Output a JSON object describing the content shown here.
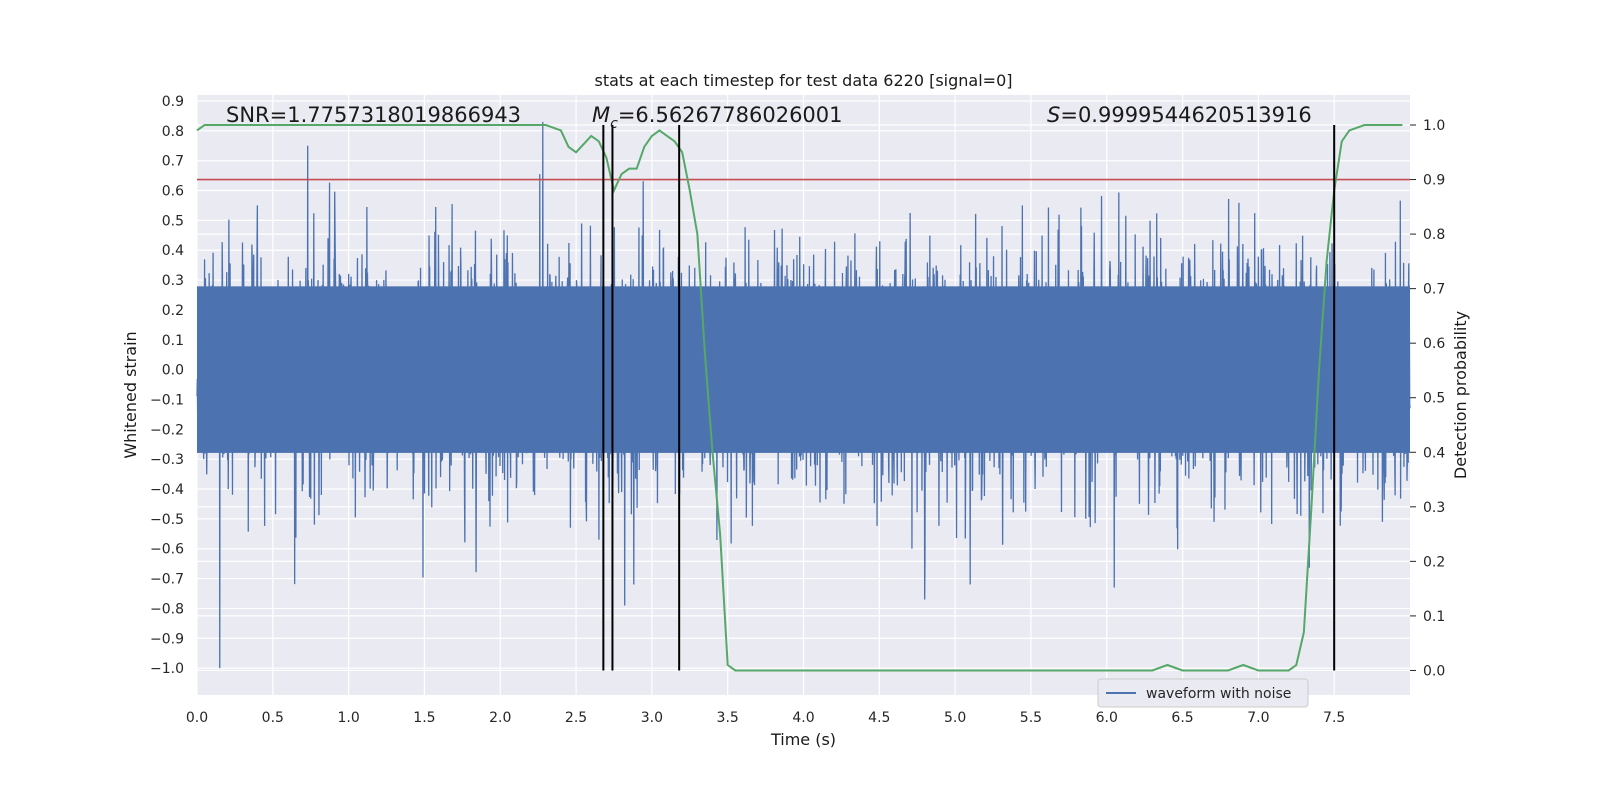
{
  "chart_data": {
    "type": "line",
    "title": "stats at each timestep for test data 6220 [signal=0]",
    "xlabel": "Time (s)",
    "ylabel": "Whitened strain",
    "y2label": "Detection probability",
    "xlim": [
      0.0,
      8.0
    ],
    "ylim": [
      -1.09,
      0.92
    ],
    "y2lim": [
      -0.045,
      1.055
    ],
    "x_ticks": [
      0.0,
      0.5,
      1.0,
      1.5,
      2.0,
      2.5,
      3.0,
      3.5,
      4.0,
      4.5,
      5.0,
      5.5,
      6.0,
      6.5,
      7.0,
      7.5
    ],
    "x_tick_labels": [
      "0.0",
      "0.5",
      "1.0",
      "1.5",
      "2.0",
      "2.5",
      "3.0",
      "3.5",
      "4.0",
      "4.5",
      "5.0",
      "5.5",
      "6.0",
      "6.5",
      "7.0",
      "7.5"
    ],
    "y_ticks": [
      0.9,
      0.8,
      0.7,
      0.6,
      0.5,
      0.4,
      0.3,
      0.2,
      0.1,
      0.0,
      -0.1,
      -0.2,
      -0.3,
      -0.4,
      -0.5,
      -0.6,
      -0.7,
      -0.8,
      -0.9,
      -1.0
    ],
    "y_tick_labels": [
      "0.9",
      "0.8",
      "0.7",
      "0.6",
      "0.5",
      "0.4",
      "0.3",
      "0.2",
      "0.1",
      "0.0",
      "−0.1",
      "−0.2",
      "−0.3",
      "−0.4",
      "−0.5",
      "−0.6",
      "−0.7",
      "−0.8",
      "−0.9",
      "−1.0"
    ],
    "y2_ticks": [
      1.0,
      0.9,
      0.8,
      0.7,
      0.6,
      0.5,
      0.4,
      0.3,
      0.2,
      0.1,
      0.0
    ],
    "y2_tick_labels": [
      "1.0",
      "0.9",
      "0.8",
      "0.7",
      "0.6",
      "0.5",
      "0.4",
      "0.3",
      "0.2",
      "0.1",
      "0.0"
    ],
    "grid": true,
    "legend_position": "bottom-right",
    "annotations": {
      "snr": "SNR=1.7757318019866943",
      "mc_symbol": "M",
      "mc_sub": "c",
      "mc_value": "=6.56267786026001",
      "s_symbol": "S",
      "s_value": "=0.9999544620513916"
    },
    "series": [
      {
        "name": "waveform with noise",
        "axis": "left",
        "color": "#4c72b0",
        "kind": "noise waveform",
        "envelope_typical": [
          -0.45,
          0.45
        ],
        "notable_spikes": [
          {
            "x": 0.15,
            "y": -1.0
          },
          {
            "x": 0.73,
            "y": 0.75
          },
          {
            "x": 2.28,
            "y": 0.83
          },
          {
            "x": 2.82,
            "y": -0.79
          },
          {
            "x": 4.8,
            "y": -0.77
          },
          {
            "x": 6.05,
            "y": -0.73
          }
        ]
      },
      {
        "axis": "right",
        "color": "#55a868",
        "x": [
          0.0,
          0.05,
          0.1,
          0.2,
          0.5,
          1.0,
          1.5,
          2.0,
          2.3,
          2.4,
          2.45,
          2.5,
          2.6,
          2.65,
          2.7,
          2.75,
          2.8,
          2.85,
          2.9,
          2.95,
          3.0,
          3.05,
          3.1,
          3.15,
          3.2,
          3.25,
          3.3,
          3.35,
          3.4,
          3.45,
          3.5,
          3.55,
          3.6,
          3.75,
          4.0,
          4.2,
          4.3,
          4.5,
          4.8,
          5.0,
          5.2,
          5.5,
          6.0,
          6.3,
          6.4,
          6.5,
          6.6,
          6.7,
          6.8,
          6.9,
          7.0,
          7.1,
          7.2,
          7.25,
          7.3,
          7.35,
          7.4,
          7.45,
          7.5,
          7.55,
          7.6,
          7.7,
          7.8,
          7.95
        ],
        "values": [
          0.99,
          1.0,
          1.0,
          1.0,
          1.0,
          1.0,
          1.0,
          1.0,
          1.0,
          0.99,
          0.96,
          0.95,
          0.98,
          0.97,
          0.94,
          0.88,
          0.91,
          0.92,
          0.92,
          0.96,
          0.98,
          0.99,
          0.98,
          0.97,
          0.95,
          0.88,
          0.8,
          0.58,
          0.4,
          0.25,
          0.01,
          0.0,
          0.0,
          0.0,
          0.0,
          0.0,
          0.0,
          0.0,
          0.0,
          0.0,
          0.0,
          0.0,
          0.0,
          0.0,
          0.01,
          0.0,
          0.0,
          0.0,
          0.0,
          0.01,
          0.0,
          0.0,
          0.0,
          0.01,
          0.07,
          0.3,
          0.55,
          0.75,
          0.88,
          0.97,
          0.99,
          1.0,
          1.0,
          1.0
        ]
      },
      {
        "axis": "right",
        "color": "#c44e52",
        "kind": "horizontal line",
        "values": [
          0.9
        ]
      }
    ],
    "vertical_lines": [
      {
        "x": 2.68,
        "color": "#000000"
      },
      {
        "x": 2.74,
        "color": "#000000"
      },
      {
        "x": 3.18,
        "color": "#000000"
      },
      {
        "x": 7.5,
        "color": "#000000"
      }
    ],
    "colors": {
      "plot_background": "#eaeaf2",
      "grid": "#ffffff",
      "waveform": "#4c72b0",
      "probability": "#55a868",
      "threshold": "#c44e52",
      "markers": "#000000"
    }
  }
}
